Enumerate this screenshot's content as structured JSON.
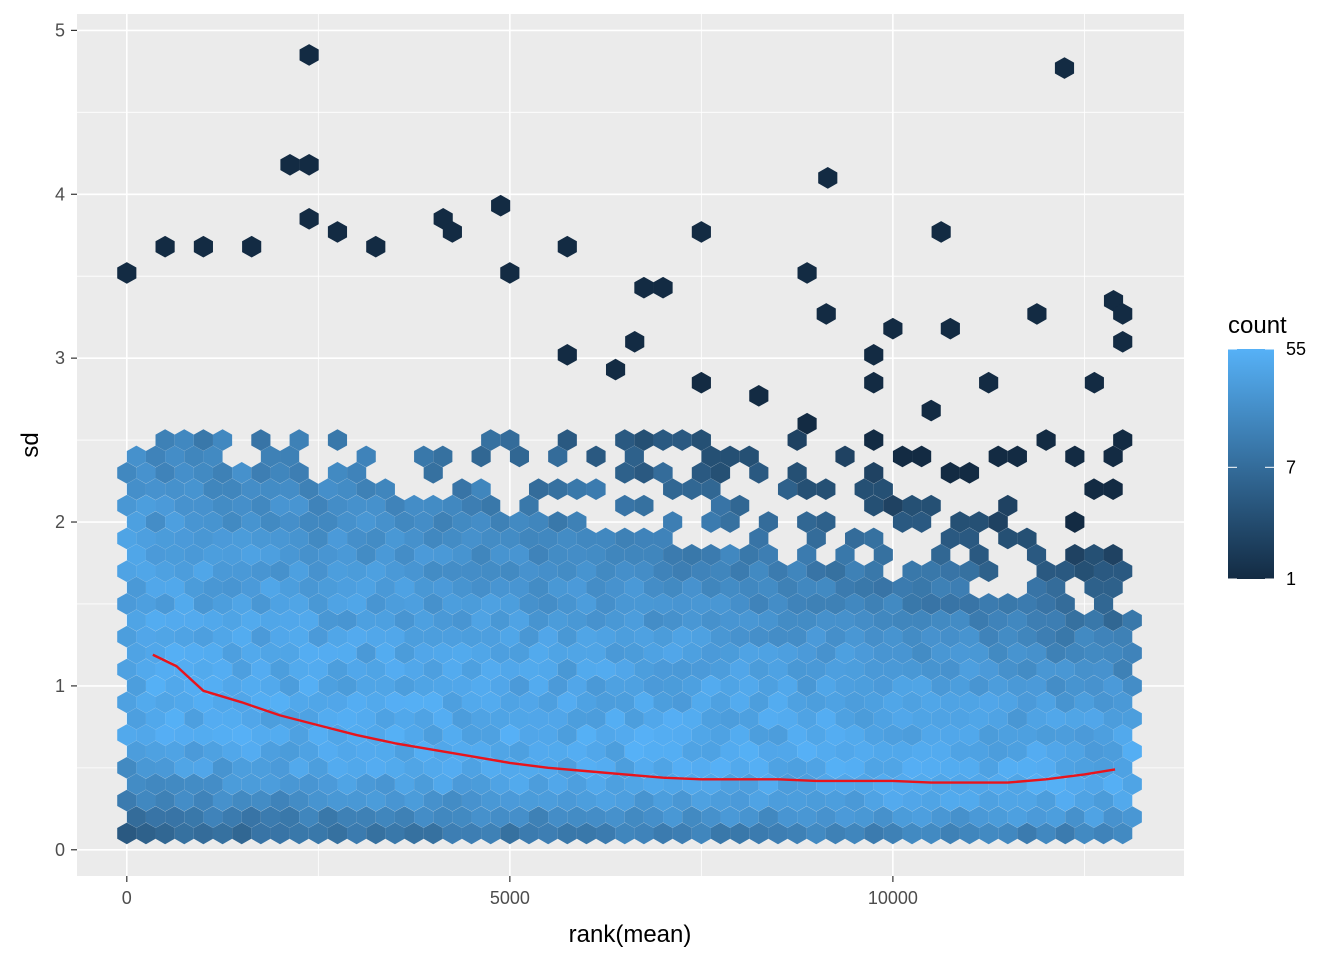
{
  "chart_data": {
    "type": "hexbin",
    "title": "",
    "xlabel": "rank(mean)",
    "ylabel": "sd",
    "xlim": [
      -650,
      13800
    ],
    "ylim": [
      -0.16,
      5.1
    ],
    "x_ticks": [
      0,
      5000,
      10000
    ],
    "x_tick_labels": [
      "0",
      "5000",
      "10000"
    ],
    "y_ticks": [
      0,
      1,
      2,
      3,
      4,
      5
    ],
    "y_tick_labels": [
      "0",
      "1",
      "2",
      "3",
      "4",
      "5"
    ],
    "grid": true,
    "background": "#ebebeb",
    "legend": {
      "title": "count",
      "placement": "right",
      "scale": "log",
      "breaks": [
        1,
        7,
        55
      ],
      "break_labels": [
        "1",
        "7",
        "55"
      ],
      "low_color": "#132b43",
      "high_color": "#56b1f7"
    },
    "trend_line": {
      "color": "#e8141c",
      "x": [
        340,
        650,
        1000,
        1500,
        2000,
        2500,
        3000,
        3500,
        4000,
        4500,
        5000,
        5500,
        6000,
        6500,
        7000,
        7500,
        8000,
        8500,
        9000,
        9500,
        10000,
        10500,
        11000,
        11500,
        12000,
        12500,
        12900
      ],
      "y": [
        1.19,
        1.12,
        0.97,
        0.9,
        0.82,
        0.76,
        0.7,
        0.65,
        0.61,
        0.57,
        0.53,
        0.5,
        0.48,
        0.46,
        0.44,
        0.43,
        0.43,
        0.43,
        0.42,
        0.42,
        0.42,
        0.41,
        0.41,
        0.41,
        0.43,
        0.46,
        0.49
      ]
    },
    "hex_bins": {
      "bin_width_x": 250,
      "bin_width_y": 0.1,
      "x_range": [
        0,
        13200
      ],
      "core_sd_center_at_start": 0.9,
      "core_sd_center_at_end": 0.35,
      "max_count": 55,
      "outliers": [
        {
          "x": 2380,
          "y": 4.85
        },
        {
          "x": 12240,
          "y": 4.77
        },
        {
          "x": 2130,
          "y": 4.18
        },
        {
          "x": 2380,
          "y": 4.18
        },
        {
          "x": 9150,
          "y": 4.1
        },
        {
          "x": 4880,
          "y": 3.93
        },
        {
          "x": 2380,
          "y": 3.85
        },
        {
          "x": 4130,
          "y": 3.85
        },
        {
          "x": 4250,
          "y": 3.77
        },
        {
          "x": 2750,
          "y": 3.77
        },
        {
          "x": 7500,
          "y": 3.77
        },
        {
          "x": 10630,
          "y": 3.77
        },
        {
          "x": 500,
          "y": 3.68
        },
        {
          "x": 1000,
          "y": 3.68
        },
        {
          "x": 1630,
          "y": 3.68
        },
        {
          "x": 3250,
          "y": 3.68
        },
        {
          "x": 5750,
          "y": 3.68
        },
        {
          "x": 0,
          "y": 3.52
        },
        {
          "x": 5000,
          "y": 3.52
        },
        {
          "x": 8880,
          "y": 3.52
        },
        {
          "x": 6750,
          "y": 3.43
        },
        {
          "x": 7000,
          "y": 3.43
        },
        {
          "x": 12880,
          "y": 3.35
        },
        {
          "x": 13000,
          "y": 3.27
        },
        {
          "x": 9130,
          "y": 3.27
        },
        {
          "x": 11880,
          "y": 3.27
        },
        {
          "x": 10000,
          "y": 3.18
        },
        {
          "x": 10750,
          "y": 3.18
        },
        {
          "x": 13000,
          "y": 3.1
        },
        {
          "x": 6630,
          "y": 3.1
        },
        {
          "x": 9750,
          "y": 3.02
        },
        {
          "x": 5750,
          "y": 3.02
        },
        {
          "x": 6380,
          "y": 2.93
        },
        {
          "x": 11250,
          "y": 2.85
        },
        {
          "x": 9750,
          "y": 2.85
        },
        {
          "x": 12630,
          "y": 2.85
        },
        {
          "x": 7500,
          "y": 2.85
        },
        {
          "x": 8250,
          "y": 2.77
        },
        {
          "x": 10500,
          "y": 2.68
        },
        {
          "x": 8880,
          "y": 2.6
        }
      ]
    }
  }
}
